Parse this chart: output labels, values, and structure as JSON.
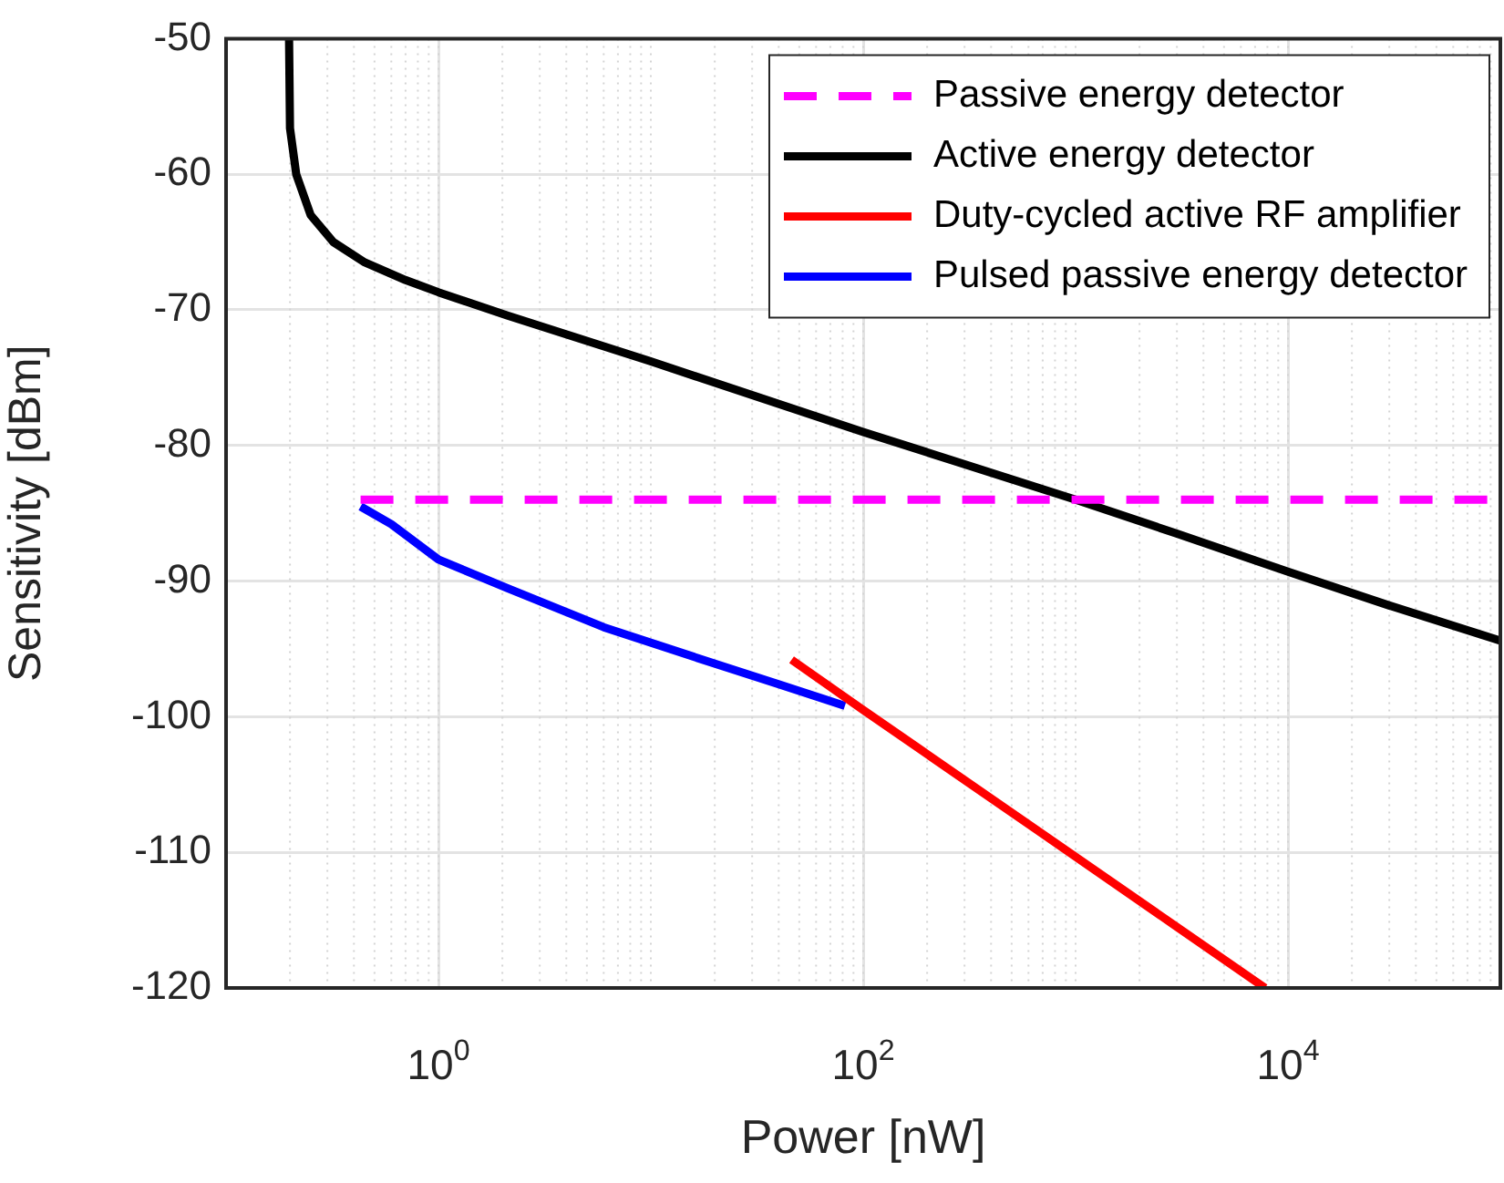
{
  "chart_data": {
    "type": "line",
    "xlabel": "Power [nW]",
    "ylabel": "Sensitivity [dBm]",
    "log": "x",
    "xlim": [
      0.1,
      100000
    ],
    "ylim": [
      -120,
      -50
    ],
    "xticks": [
      {
        "value": 1,
        "label": "10$^{0}$"
      },
      {
        "value": 100,
        "label": "10$^{2}$"
      },
      {
        "value": 10000,
        "label": "10$^{4}$"
      }
    ],
    "yticks": [
      -120,
      -110,
      -100,
      -90,
      -80,
      -70,
      -60,
      -50
    ],
    "grid": true,
    "legend": "top right",
    "series": [
      {
        "name": "Passive energy detector",
        "color": "#ff00ff",
        "line_style": "dashed",
        "marker": "none",
        "x": [
          0.43,
          100000
        ],
        "values": [
          -84,
          -84
        ]
      },
      {
        "name": "Active energy detector",
        "color": "#000000",
        "line_style": "solid",
        "marker": "none",
        "x": [
          0.198,
          0.2,
          0.214,
          0.25,
          0.32,
          0.45,
          0.7,
          1,
          2.1,
          10,
          100,
          1000,
          3000,
          10000,
          30000,
          100000
        ],
        "values": [
          -50,
          -56.6,
          -60,
          -63,
          -65,
          -66.5,
          -67.8,
          -68.7,
          -70.4,
          -73.8,
          -79,
          -84,
          -86.5,
          -89.3,
          -91.8,
          -94.4
        ]
      },
      {
        "name": "Duty-cycled active RF amplifier",
        "color": "#ff0000",
        "line_style": "solid",
        "marker": "none",
        "x": [
          46,
          100,
          650,
          7800
        ],
        "values": [
          -95.8,
          -99.5,
          -108.3,
          -120
        ]
      },
      {
        "name": "Pulsed passive energy detector",
        "color": "#0000ff",
        "line_style": "solid",
        "marker": "none",
        "x": [
          0.43,
          0.6,
          1,
          2.1,
          6,
          22,
          40,
          82
        ],
        "values": [
          -84.5,
          -85.8,
          -88.4,
          -90.5,
          -93.4,
          -96.3,
          -97.6,
          -99.2
        ]
      }
    ]
  }
}
